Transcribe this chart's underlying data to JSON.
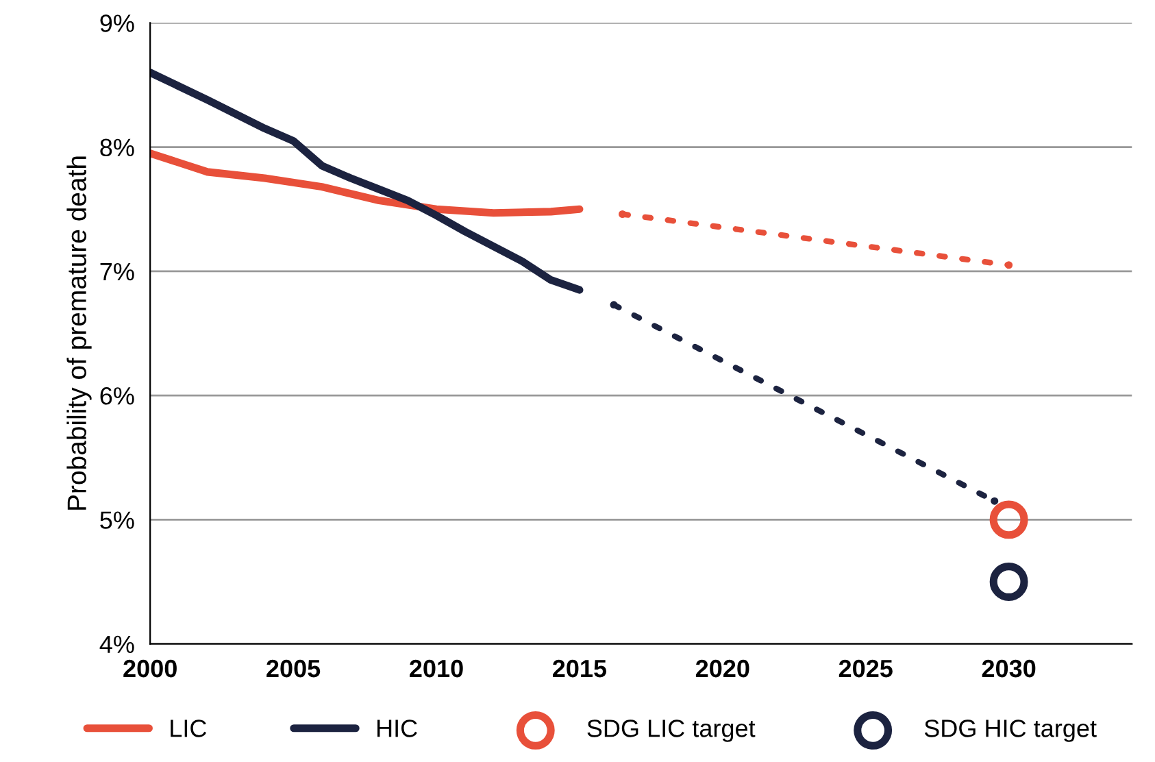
{
  "chart_data": {
    "type": "line",
    "ylabel": "Probability of premature death",
    "series": [
      {
        "name": "LIC",
        "color": "#e8503a",
        "x": [
          2000,
          2002,
          2004,
          2006,
          2008,
          2010,
          2012,
          2014,
          2015
        ],
        "values": [
          7.95,
          7.8,
          7.75,
          7.68,
          7.57,
          7.5,
          7.47,
          7.48,
          7.5
        ]
      },
      {
        "name": "HIC",
        "color": "#1c2340",
        "x": [
          2000,
          2002,
          2004,
          2005,
          2006,
          2007,
          2008,
          2009,
          2010,
          2011,
          2012,
          2013,
          2014,
          2015
        ],
        "values": [
          8.6,
          8.38,
          8.15,
          8.05,
          7.85,
          7.75,
          7.66,
          7.57,
          7.45,
          7.32,
          7.2,
          7.08,
          6.93,
          6.85
        ]
      },
      {
        "color": "#e8503a",
        "line_style": "dotted",
        "marker": "circle",
        "x": [
          2016.5,
          2030
        ],
        "values": [
          7.46,
          7.05
        ]
      },
      {
        "color": "#1c2340",
        "line_style": "dotted",
        "marker": "circle",
        "x": [
          2016.2,
          2029.5
        ],
        "values": [
          6.73,
          5.15
        ]
      },
      {
        "name": "SDG LIC target",
        "type": "scatter",
        "marker": "circle",
        "color": "#e8503a",
        "x": [
          2030
        ],
        "values": [
          5.0
        ]
      },
      {
        "name": "SDG HIC target",
        "type": "scatter",
        "marker": "circle",
        "color": "#1c2340",
        "x": [
          2030
        ],
        "values": [
          4.5
        ]
      }
    ],
    "xlim": [
      2000,
      2034.3
    ],
    "xticks": [
      2000,
      2005,
      2010,
      2015,
      2020,
      2025,
      2030
    ],
    "ylim": [
      4,
      9
    ],
    "yticks": [
      {
        "value": 4,
        "label": "4%"
      },
      {
        "value": 5,
        "label": "5%"
      },
      {
        "value": 6,
        "label": "6%"
      },
      {
        "value": 7,
        "label": "7%"
      },
      {
        "value": 8,
        "label": "8%"
      },
      {
        "value": 9,
        "label": "9%"
      }
    ],
    "grid": "y",
    "legend": "bottom"
  }
}
